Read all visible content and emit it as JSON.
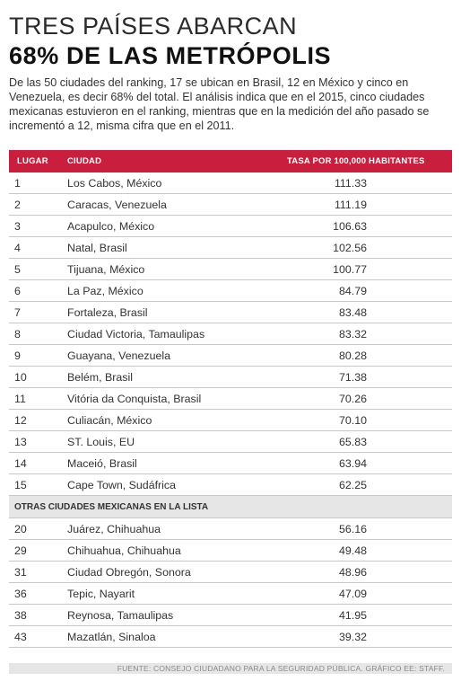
{
  "header": {
    "title_line1": "TRES PAÍSES ABARCAN",
    "title_line2": "68% DE LAS METRÓPOLIS",
    "intro": "De las 50 ciudades del ranking, 17 se ubican en Brasil, 12 en México y cinco en Venezuela, es decir 68% del total. El análisis indica que en el 2015, cinco ciudades mexicanas estuvieron en el ranking, mientras que en la medición del año pasado se incrementó a 12, misma cifra que en el 2011."
  },
  "table": {
    "columns": [
      "LUGAR",
      "CIUDAD",
      "TASA POR 100,000 HABITANTES"
    ],
    "rows": [
      {
        "rank": "1",
        "city": "Los Cabos, México",
        "rate": "111.33"
      },
      {
        "rank": "2",
        "city": "Caracas, Venezuela",
        "rate": "111.19"
      },
      {
        "rank": "3",
        "city": "Acapulco, México",
        "rate": "106.63"
      },
      {
        "rank": "4",
        "city": "Natal, Brasil",
        "rate": "102.56"
      },
      {
        "rank": "5",
        "city": "Tijuana, México",
        "rate": "100.77"
      },
      {
        "rank": "6",
        "city": "La Paz, México",
        "rate": "84.79"
      },
      {
        "rank": "7",
        "city": "Fortaleza, Brasil",
        "rate": "83.48"
      },
      {
        "rank": "8",
        "city": "Ciudad Victoria, Tamaulipas",
        "rate": "83.32"
      },
      {
        "rank": "9",
        "city": "Guayana, Venezuela",
        "rate": "80.28"
      },
      {
        "rank": "10",
        "city": "Belém, Brasil",
        "rate": "71.38"
      },
      {
        "rank": "11",
        "city": "Vitória da Conquista, Brasil",
        "rate": "70.26"
      },
      {
        "rank": "12",
        "city": "Culiacán, México",
        "rate": "70.10"
      },
      {
        "rank": "13",
        "city": "ST. Louis, EU",
        "rate": "65.83"
      },
      {
        "rank": "14",
        "city": "Maceió, Brasil",
        "rate": "63.94"
      },
      {
        "rank": "15",
        "city": "Cape Town, Sudáfrica",
        "rate": "62.25"
      }
    ],
    "section_label": "OTRAS CIUDADES MEXICANAS EN LA LISTA",
    "other_rows": [
      {
        "rank": "20",
        "city": "Juárez, Chihuahua",
        "rate": "56.16"
      },
      {
        "rank": "29",
        "city": "Chihuahua, Chihuahua",
        "rate": "49.48"
      },
      {
        "rank": "31",
        "city": "Ciudad Obregón, Sonora",
        "rate": "48.96"
      },
      {
        "rank": "36",
        "city": "Tepic, Nayarit",
        "rate": "47.09"
      },
      {
        "rank": "38",
        "city": "Reynosa, Tamaulipas",
        "rate": "41.95"
      },
      {
        "rank": "43",
        "city": "Mazatlán, Sinaloa",
        "rate": "39.32"
      }
    ]
  },
  "source": "FUENTE: CONSEJO CIUDADANO PARA LA SEGURIDAD PÚBLICA. GRÁFICO EE: STAFF.",
  "colors": {
    "header_bg": "#c91e3d",
    "section_bg": "#e6e6e6"
  }
}
